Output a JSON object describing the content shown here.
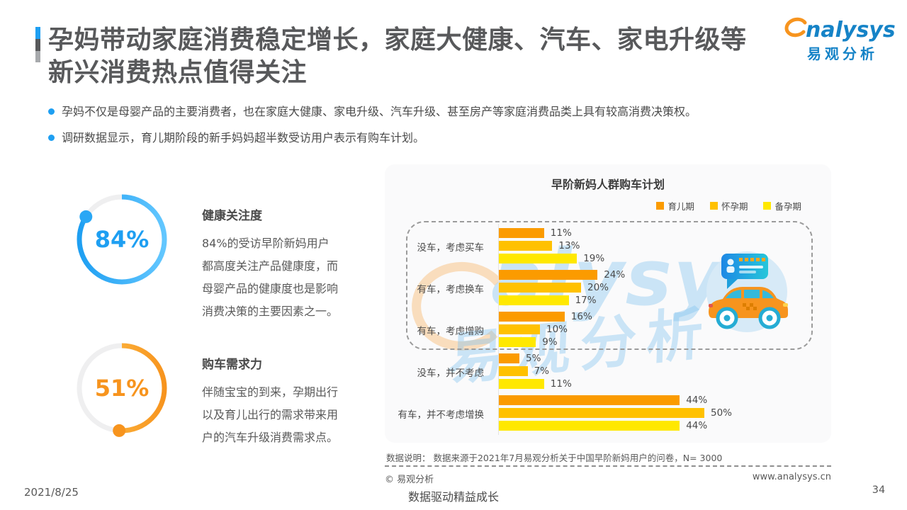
{
  "colors": {
    "accent_blue": "#1E9FF2",
    "accent_orange": "#F7941E",
    "title_gray": "#58595B",
    "logo_blue": "#1583C7",
    "card_bg": "#FAFAFB"
  },
  "header": {
    "title_line1": "孕妈带动家庭消费稳定增长，家庭大健康、汽车、家电升级等",
    "title_line2": "新兴消费热点值得关注",
    "logo_rest": "nalysys",
    "logo_cn": "易观分析"
  },
  "bullets": [
    "孕妈不仅是母婴产品的主要消费者，也在家庭大健康、家电升级、汽车升级、甚至房产等家庭消费品类上具有较高消费决策权。",
    "调研数据显示，育儿期阶段的新手妈妈超半数受访用户表示有购车计划。"
  ],
  "stats": [
    {
      "percent": 84,
      "value_label": "84%",
      "title": "健康关注度",
      "desc": "84%的受访早阶新妈用户都高度关注产品健康度，而母婴产品的健康度也是影响消费决策的主要因素之一。",
      "color": "#1E9FF2",
      "gradient_start": "#1E9FF2",
      "gradient_end": "#63C7FF",
      "dot_color": "#29A7F5"
    },
    {
      "percent": 51,
      "value_label": "51%",
      "title": "购车需求力",
      "desc": "伴随宝宝的到来，孕期出行以及育儿出行的需求带来用户的汽车升级消费需求点。",
      "color": "#F7941E",
      "gradient_start": "#FFC34D",
      "gradient_end": "#F7941E",
      "dot_color": "#F7941E"
    }
  ],
  "chart_data": {
    "type": "bar",
    "orientation": "horizontal",
    "title": "早阶新妈人群购车计划",
    "categories": [
      "没车，考虑买车",
      "有车，考虑换车",
      "有车，考虑增购",
      "没车，并不考虑",
      "有车，并不考虑增换"
    ],
    "series": [
      {
        "name": "育儿期",
        "color": "#FB9B00",
        "values": [
          11,
          24,
          16,
          5,
          44
        ]
      },
      {
        "name": "怀孕期",
        "color": "#FFC100",
        "values": [
          13,
          20,
          10,
          7,
          50
        ]
      },
      {
        "name": "备孕期",
        "color": "#FFE800",
        "values": [
          19,
          17,
          9,
          11,
          44
        ]
      }
    ],
    "value_suffix": "%",
    "xlim": [
      0,
      55
    ],
    "grid": false,
    "legend_position": "top-right",
    "highlighted_categories": [
      "没车，考虑买车",
      "有车，考虑换车",
      "有车，考虑增购"
    ],
    "note": "数据说明： 数据来源于2021年7月易观分析关于中国早阶新妈用户的问卷，N= 3000"
  },
  "watermark": {
    "text_en": "alysys",
    "text_cn": "易观分析"
  },
  "footer": {
    "copyright": "© 易观分析",
    "website": "www.analysys.cn",
    "slogan": "数据驱动精益成长",
    "date": "2021/8/25",
    "page_number": "34"
  }
}
